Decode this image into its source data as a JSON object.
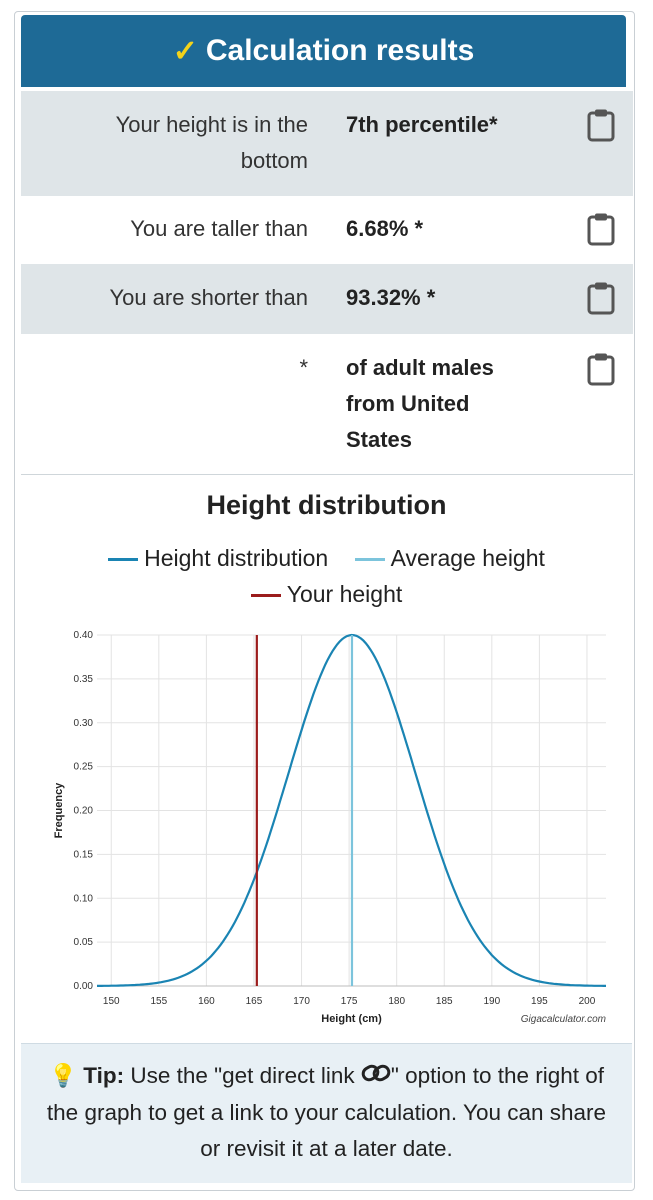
{
  "header": {
    "title": "Calculation results"
  },
  "results": [
    {
      "label": "Your height is in the bottom",
      "value": "7th percentile*"
    },
    {
      "label": "You are taller than",
      "value": "6.68% *"
    },
    {
      "label": "You are shorter than",
      "value": "93.32% *"
    },
    {
      "label": "*",
      "value": "of adult males from United States"
    }
  ],
  "icons": {
    "check": "check-icon",
    "clipboard": "clipboard-icon",
    "bulb": "lightbulb-icon",
    "link": "link-icon"
  },
  "colors": {
    "header_bg": "#1e6a96",
    "distribution": "#1a84b3",
    "average": "#7cc4dc",
    "your_height": "#9b1c1c"
  },
  "chart_data": {
    "type": "line",
    "title": "Height distribution",
    "legend": [
      "Height distribution",
      "Average height",
      "Your height"
    ],
    "xlabel": "Height (cm)",
    "ylabel": "Frequency",
    "watermark": "Gigacalculator.com",
    "xlim": [
      148.5,
      202
    ],
    "ylim": [
      0,
      0.4
    ],
    "x_ticks": [
      150,
      155,
      160,
      165,
      170,
      175,
      180,
      185,
      190,
      195,
      200
    ],
    "y_ticks": [
      0.0,
      0.05,
      0.1,
      0.15,
      0.2,
      0.25,
      0.3,
      0.35,
      0.4
    ],
    "y_tick_labels": [
      "0.00",
      "0.05",
      "0.10",
      "0.15",
      "0.20",
      "0.25",
      "0.30",
      "0.35",
      "0.40"
    ],
    "series": [
      {
        "name": "Height distribution",
        "kind": "normal",
        "mean": 175.3,
        "sd": 6.67,
        "peak": 0.4
      }
    ],
    "markers": [
      {
        "name": "Average height",
        "x": 175.3
      },
      {
        "name": "Your height",
        "x": 165.3
      }
    ],
    "grid": true
  },
  "tip": {
    "label": "Tip:",
    "text_before": " Use the \"get direct link ",
    "text_after": "\" option to the right of the graph to get a link to your calculation. You can share or revisit it at a later date."
  }
}
